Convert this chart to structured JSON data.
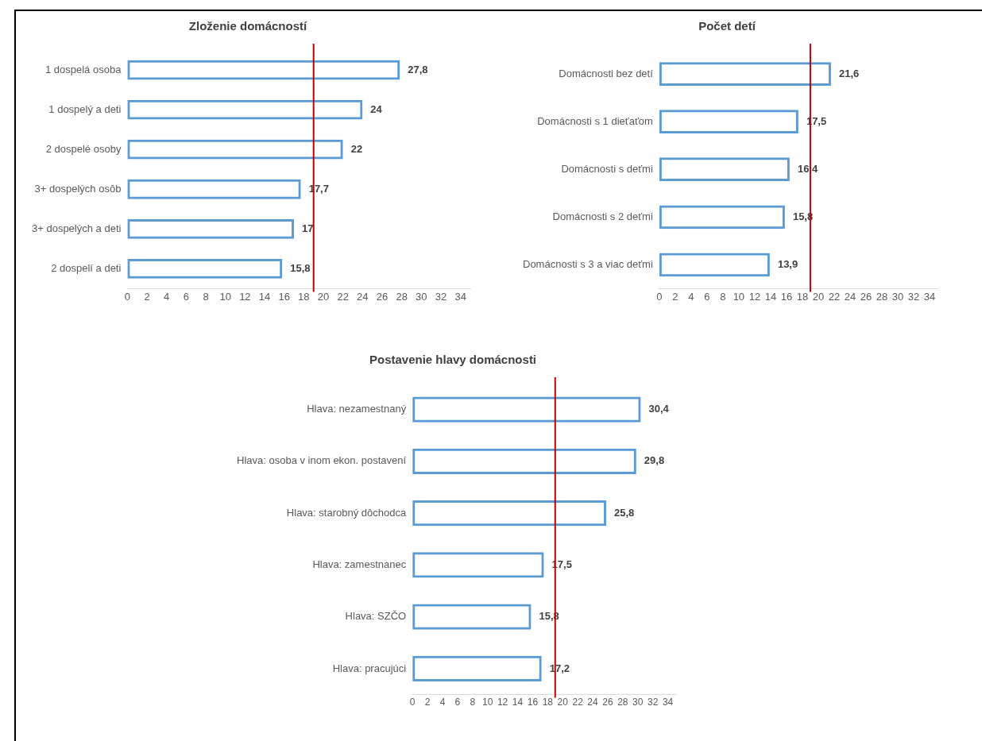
{
  "chart_data": [
    {
      "type": "bar",
      "orientation": "horizontal",
      "title": "Zloženie domácností",
      "categories": [
        "1 dospelá osoba",
        "1 dospelý a deti",
        "2 dospelé osoby",
        "3+ dospelých osôb",
        "3+ dospelých a deti",
        "2 dospelí a deti"
      ],
      "values": [
        27.8,
        24,
        22,
        17.7,
        17,
        15.8
      ],
      "value_labels": [
        "27,8",
        "24",
        "22",
        "17,7",
        "17",
        "15,8"
      ],
      "color": "#5b9bd5",
      "xlim": [
        0,
        35
      ],
      "xticks": [
        0,
        2,
        4,
        6,
        8,
        10,
        12,
        14,
        16,
        18,
        20,
        22,
        24,
        26,
        28,
        30,
        32,
        34
      ],
      "grid": false,
      "ref_lines": [
        {
          "axis": "x",
          "value": 19,
          "color": "#c00000"
        }
      ]
    },
    {
      "type": "bar",
      "orientation": "horizontal",
      "title": "Počet detí",
      "categories": [
        "Domácnosti bez detí",
        "Domácnosti s 1 dieťaťom",
        "Domácnosti s deťmi",
        "Domácnosti s 2 deťmi",
        "Domácnosti s 3 a viac deťmi"
      ],
      "values": [
        21.6,
        17.5,
        16.4,
        15.8,
        13.9
      ],
      "value_labels": [
        "21,6",
        "17,5",
        "16,4",
        "15,8",
        "13,9"
      ],
      "color": "#5b9bd5",
      "xlim": [
        0,
        35
      ],
      "xticks": [
        0,
        2,
        4,
        6,
        8,
        10,
        12,
        14,
        16,
        18,
        20,
        22,
        24,
        26,
        28,
        30,
        32,
        34
      ],
      "grid": false,
      "ref_lines": [
        {
          "axis": "x",
          "value": 19,
          "color": "#c00000"
        }
      ]
    },
    {
      "type": "bar",
      "orientation": "horizontal",
      "title": "Postavenie hlavy domácnosti",
      "categories": [
        "Hlava: nezamestnaný",
        "Hlava: osoba v inom ekon. postavení",
        "Hlava: starobný dôchodca",
        "Hlava: zamestnanec",
        "Hlava: SZČO",
        "Hlava: pracujúci"
      ],
      "values": [
        30.4,
        29.8,
        25.8,
        17.5,
        15.8,
        17.2
      ],
      "value_labels": [
        "30,4",
        "29,8",
        "25,8",
        "17,5",
        "15,8",
        "17,2"
      ],
      "color": "#5b9bd5",
      "xlim": [
        0,
        35
      ],
      "xticks": [
        0,
        2,
        4,
        6,
        8,
        10,
        12,
        14,
        16,
        18,
        20,
        22,
        24,
        26,
        28,
        30,
        32,
        34
      ],
      "grid": false,
      "ref_lines": [
        {
          "axis": "x",
          "value": 19,
          "color": "#c00000"
        }
      ]
    }
  ]
}
